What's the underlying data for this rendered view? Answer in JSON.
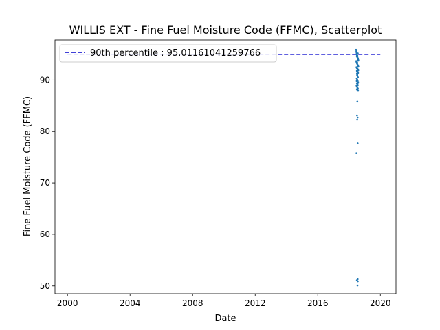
{
  "chart_data": {
    "type": "scatter",
    "title": "WILLIS EXT - Fine Fuel Moisture Code (FFMC), Scatterplot",
    "xlabel": "Date",
    "ylabel": "Fine Fuel Moisture Code (FFMC)",
    "xlim": [
      1999.2,
      2021.0
    ],
    "ylim": [
      48.5,
      97.8
    ],
    "xticks": [
      2000,
      2004,
      2008,
      2012,
      2016,
      2020
    ],
    "xtick_labels": [
      "2000",
      "2004",
      "2008",
      "2012",
      "2016",
      "2020"
    ],
    "yticks": [
      50,
      60,
      70,
      80,
      90
    ],
    "ytick_labels": [
      "50",
      "60",
      "70",
      "80",
      "90"
    ],
    "grid": false,
    "legend_position": "top-left",
    "point_color": "#1f77b4",
    "series": [
      {
        "type": "scatter",
        "x": [
          2018.45,
          2018.47,
          2018.48,
          2018.49,
          2018.5,
          2018.51,
          2018.52,
          2018.53,
          2018.54,
          2018.55,
          2018.56,
          2018.57,
          2018.58,
          2018.59,
          2018.6,
          2018.46,
          2018.48,
          2018.5,
          2018.52,
          2018.54,
          2018.56,
          2018.58,
          2018.6,
          2018.47,
          2018.49,
          2018.51,
          2018.53,
          2018.55,
          2018.57,
          2018.59,
          2018.5,
          2018.52,
          2018.54,
          2018.56,
          2018.58,
          2018.5,
          2018.53,
          2018.55,
          2018.57,
          2018.49,
          2018.52,
          2018.55,
          2018.58,
          2018.5,
          2018.53,
          2018.56,
          2018.48,
          2018.51,
          2018.54,
          2018.57,
          2018.5,
          2018.53,
          2018.55,
          2018.58,
          2018.49,
          2018.52,
          2018.55,
          2018.5,
          2018.53,
          2018.56,
          2018.51,
          2018.54,
          2018.52,
          2018.55,
          2018.5,
          2018.53,
          2018.51,
          2018.55,
          2018.52,
          2018.55,
          2018.47,
          2018.55,
          2018.5,
          2018.56,
          2018.54
        ],
        "y": [
          95.9,
          95.6,
          95.3,
          95.0,
          94.9,
          94.7,
          94.6,
          94.5,
          94.4,
          94.3,
          94.2,
          94.1,
          94.0,
          93.9,
          93.8,
          93.7,
          93.5,
          93.3,
          93.2,
          93.0,
          92.9,
          92.8,
          92.6,
          92.5,
          92.4,
          92.3,
          92.2,
          92.1,
          92.0,
          91.9,
          91.8,
          91.7,
          91.6,
          91.5,
          91.4,
          91.2,
          91.0,
          90.7,
          90.5,
          90.3,
          90.1,
          89.9,
          89.6,
          89.4,
          89.2,
          89.0,
          88.9,
          88.7,
          88.5,
          88.3,
          88.2,
          88.1,
          88.0,
          87.9,
          89.8,
          90.9,
          92.7,
          93.6,
          94.8,
          95.2,
          91.3,
          92.2,
          93.4,
          89.3,
          94.6,
          85.8,
          83.1,
          82.7,
          82.3,
          77.7,
          75.8,
          51.3,
          51.1,
          50.9,
          50.1
        ],
        "marker_size": 1.3
      },
      {
        "type": "hline",
        "name": "90th percentile : 95.01161041259766",
        "y": 95.01161041259766,
        "x": [
          2000,
          2020
        ],
        "color": "#0000cc",
        "linestyle": "dashed"
      }
    ]
  }
}
